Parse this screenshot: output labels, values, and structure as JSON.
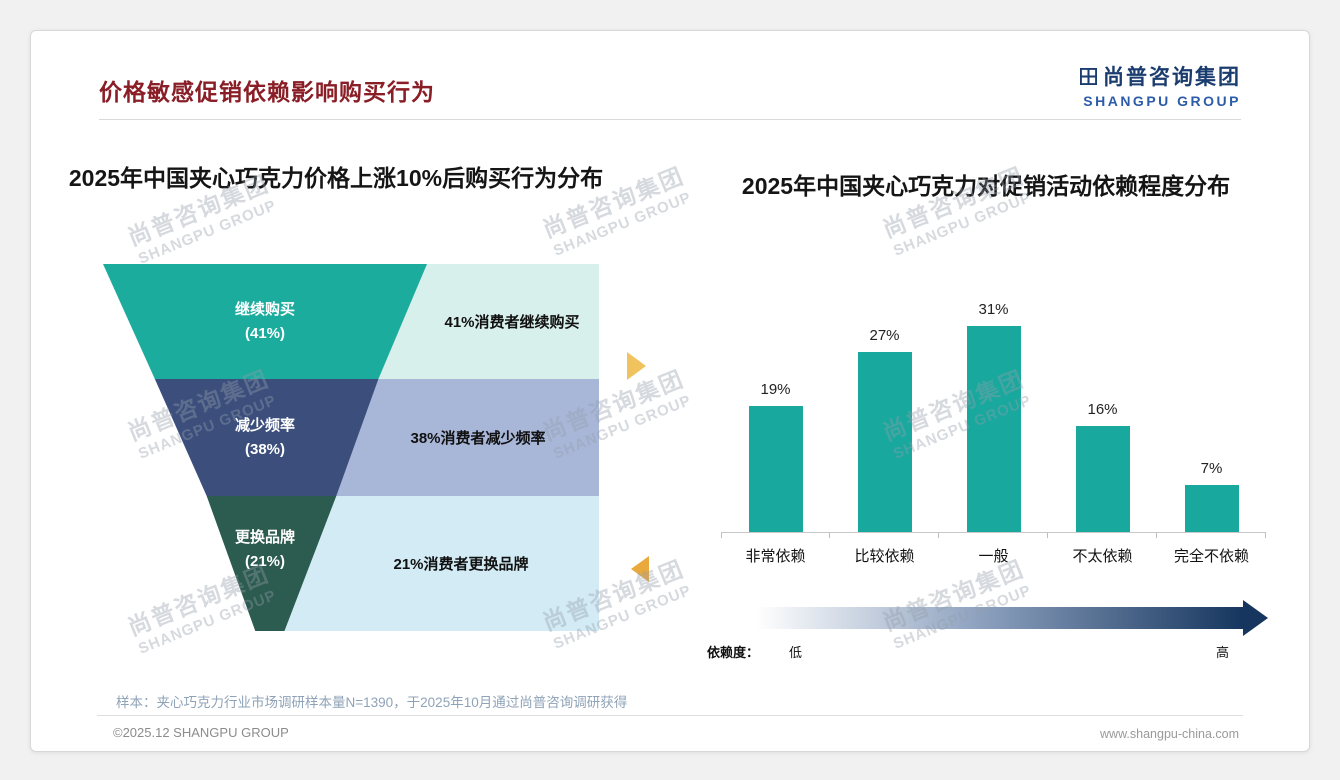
{
  "page": {
    "title": "价格敏感促销依赖影响购买行为",
    "logo": {
      "name_cn": "尚普咨询集团",
      "name_en": "SHANGPU GROUP"
    },
    "watermark": {
      "line1": "尚普咨询集团",
      "line2": "SHANGPU GROUP"
    },
    "footer": {
      "sample_note": "样本：夹心巧克力行业市场调研样本量N=1390，于2025年10月通过尚普咨询调研获得",
      "copyright": "©2025.12 SHANGPU GROUP",
      "website": "www.shangpu-china.com"
    }
  },
  "colors": {
    "title_maroon": "#8A1E26",
    "logo_navy": "#1B3C6E",
    "teal": "#18A89D",
    "funnel_teal": "#1CAC9E",
    "funnel_navy": "#3C4F7C",
    "funnel_green": "#2C5B4F",
    "panel_teal": "#D8F0EB",
    "panel_navy": "#A8B6D8",
    "panel_cyan": "#D2EBF5",
    "arrow_yellow": "#F0C35F",
    "arrow_orange": "#E9A93C",
    "gradient_end": "#16365F"
  },
  "chart_data": [
    {
      "type": "funnel",
      "title": "2025年中国夹心巧克力价格上涨10%后购买行为分布",
      "stages": [
        {
          "label": "继续购买",
          "pct_label": "(41%)",
          "value": 41,
          "annotation": "41%消费者继续购买",
          "color": "#1CAC9E",
          "panel_color": "#D8F0EB"
        },
        {
          "label": "减少频率",
          "pct_label": "(38%)",
          "value": 38,
          "annotation": "38%消费者减少频率",
          "color": "#3C4F7C",
          "panel_color": "#A8B6D8"
        },
        {
          "label": "更换品牌",
          "pct_label": "(21%)",
          "value": 21,
          "annotation": "21%消费者更换品牌",
          "color": "#2C5B4F",
          "panel_color": "#D2EBF5"
        }
      ]
    },
    {
      "type": "bar",
      "title": "2025年中国夹心巧克力对促销活动依赖程度分布",
      "categories": [
        "非常依赖",
        "比较依赖",
        "一般",
        "不太依赖",
        "完全不依赖"
      ],
      "values": [
        19,
        27,
        31,
        16,
        7
      ],
      "value_labels": [
        "19%",
        "27%",
        "31%",
        "16%",
        "7%"
      ],
      "bar_color": "#18A89D",
      "ylim": [
        0,
        35
      ],
      "grid": false,
      "legend": "none",
      "axis_note": {
        "label": "依赖度：",
        "low": "低",
        "high": "高"
      }
    }
  ]
}
